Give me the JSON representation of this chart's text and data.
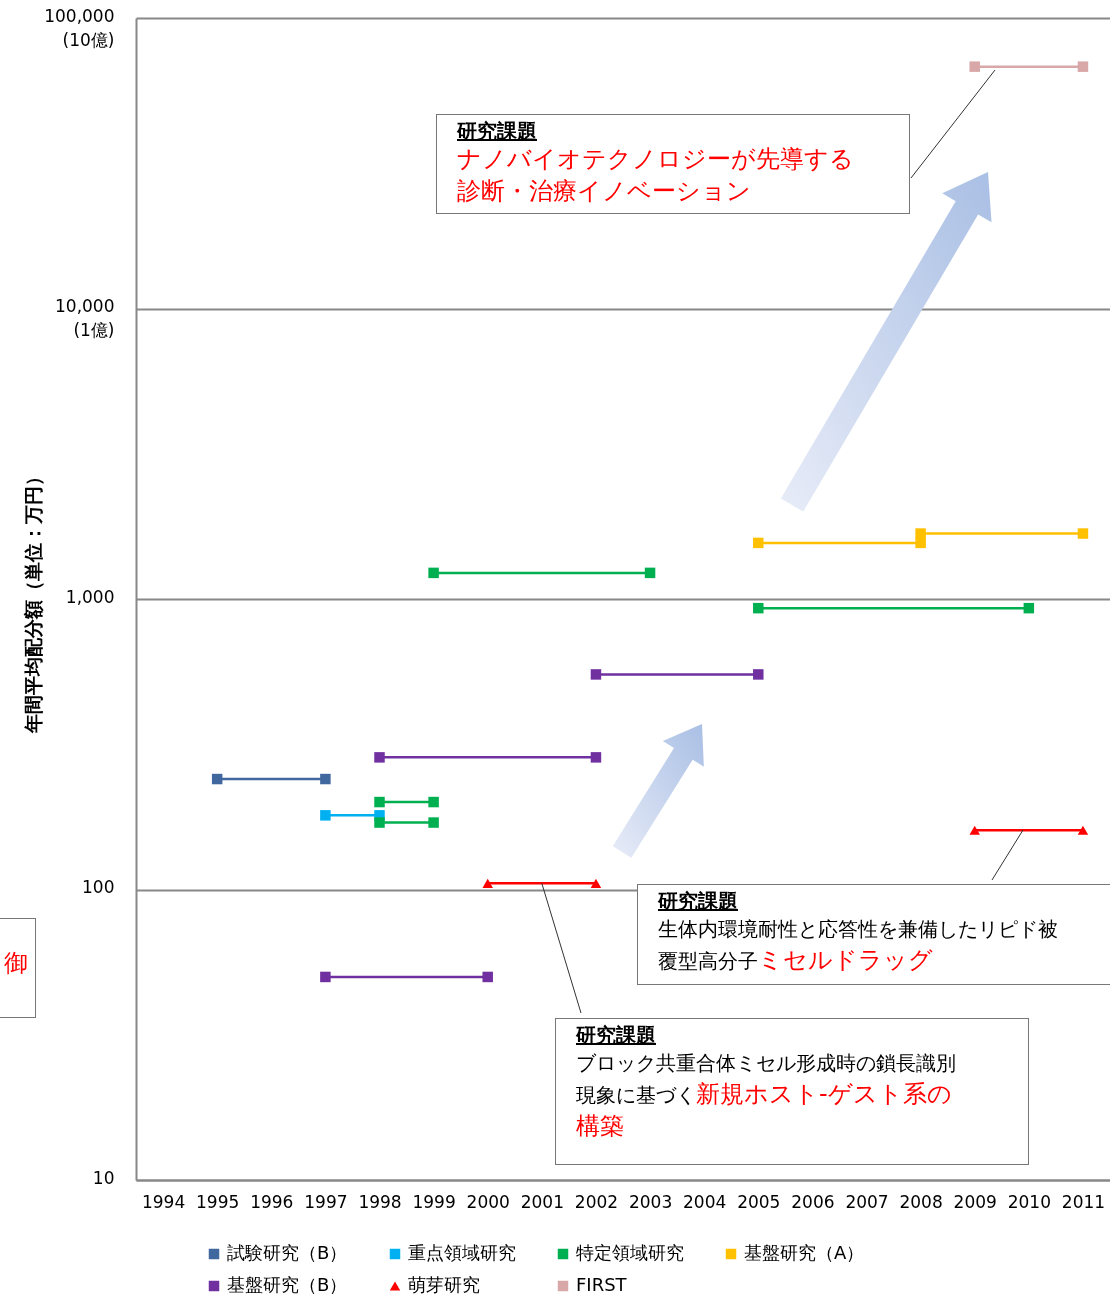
{
  "chart_data": {
    "type": "line",
    "ylabel": "年間平均配分額（単位：万円）",
    "xlim": [
      1993.5,
      2011.5
    ],
    "xticks": [
      1994,
      1995,
      1996,
      1997,
      1998,
      1999,
      2000,
      2001,
      2002,
      2003,
      2004,
      2005,
      2006,
      2007,
      2008,
      2009,
      2010,
      2011
    ],
    "log": true,
    "ylim": [
      10,
      100000
    ],
    "yticks": [
      10,
      100,
      {
        "value": 1000,
        "label": "1,000"
      },
      {
        "value": 10000,
        "label": "10,000\n(1億)"
      },
      {
        "value": 100000,
        "label": "100,000\n(10億)"
      }
    ],
    "grid": "y",
    "marker": "square",
    "line_style": "solid",
    "legend": "bottom",
    "series": [
      {
        "name": "試験研究（B）",
        "color": "#41689e",
        "x": [
          1995,
          1997
        ],
        "values": [
          240,
          240
        ]
      },
      {
        "name": "重点領域研究",
        "color": "#00b0f0",
        "x": [
          1997,
          1998
        ],
        "values": [
          180,
          180
        ]
      },
      {
        "name": "特定領域研究",
        "color": "#00b050",
        "x": [
          1998,
          1999,
          null,
          1999,
          2003,
          null,
          2005,
          2010
        ],
        "values": [
          200,
          200,
          null,
          1230,
          1230,
          null,
          930,
          930
        ]
      },
      {
        "color": "#00b050",
        "x": [
          1998,
          1999
        ],
        "values": [
          170,
          170
        ]
      },
      {
        "name": "基盤研究（A）",
        "color": "#ffc000",
        "x": [
          2005,
          2008,
          null,
          2008,
          2011
        ],
        "values": [
          1560,
          1560,
          null,
          1680,
          1680
        ]
      },
      {
        "name": "基盤研究（B）",
        "color": "#7030a0",
        "x": [
          1997,
          2000,
          null,
          1998,
          2002,
          null,
          2002,
          2005
        ],
        "values": [
          50,
          50,
          null,
          285,
          285,
          null,
          550,
          550
        ]
      },
      {
        "name": "萌芽研究",
        "color": "#ff0000",
        "marker": "triangle",
        "x": [
          2000,
          2002,
          null,
          2009,
          2011
        ],
        "values": [
          105,
          105,
          null,
          160,
          160
        ]
      },
      {
        "name": "FIRST",
        "color": "#d8a7a7",
        "x": [
          2009,
          2011
        ],
        "values": [
          68000,
          68000
        ]
      }
    ],
    "annotations": [
      "研究課題",
      "ナノバイオテクノロジーが先導する診断・治療イノベーション",
      "研究課題",
      "生体内環境耐性と応答性を兼備したリピド被覆型高分子",
      "ミセルドラッグ",
      {
        "text": "研究課題",
        "x": 2001,
        "y": 105
      },
      "ブロック共重合体ミセル形成時の鎖長識別現象に基づく",
      "新規ホスト-ゲスト系の構築",
      "御"
    ]
  }
}
